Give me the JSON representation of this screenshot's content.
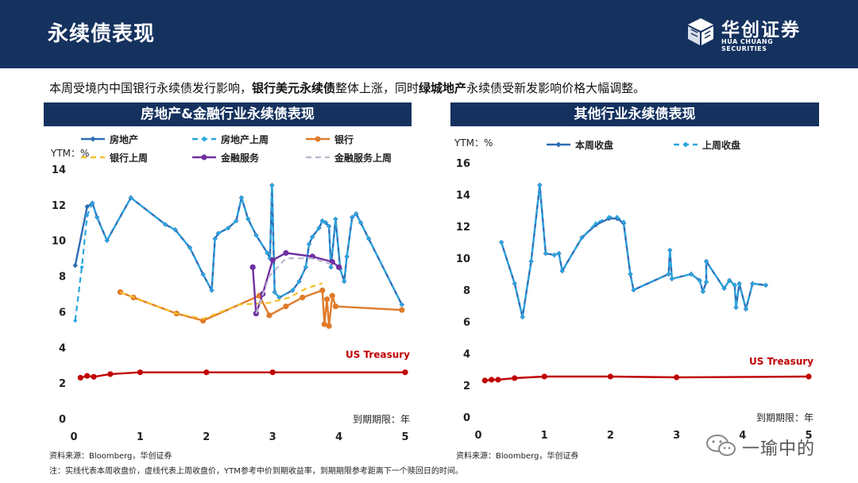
{
  "header": {
    "title": "永续债表现",
    "logo_cn": "华创证券",
    "logo_en": "HUA CHUANG SECURITIES"
  },
  "summary": {
    "part1": "本周受境内中国银行永续债发行影响，",
    "bold1": "银行美元永续债",
    "part2": "整体上涨，同时",
    "bold2": "绿城地产",
    "part3": "永续债受新发影响价格大幅调整。"
  },
  "colors": {
    "navy": "#15325f",
    "estate": "#2f6db5",
    "estate_prev": "#2aa6df",
    "bank": "#e07b2a",
    "bank_prev": "#f5c02a",
    "finance": "#7030a0",
    "finance_prev": "#b9b9d2",
    "treasury": "#c00000"
  },
  "left_panel": {
    "title": "房地产&金融行业永续债表现"
  },
  "right_panel": {
    "title": "其他行业永续债表现"
  },
  "chart_data": [
    {
      "type": "line",
      "title": "房地产&金融行业永续债表现",
      "ylabel": "YTM：%",
      "xlabel": "到期期限：年",
      "xlim": [
        0,
        5
      ],
      "ylim": [
        0,
        14
      ],
      "xticks": [
        "0",
        "1",
        "2",
        "3",
        "4",
        "5"
      ],
      "yticks": [
        "0",
        "2",
        "4",
        "6",
        "8",
        "10",
        "12",
        "14"
      ],
      "legend_position": "top",
      "annotation": "US Treasury",
      "series": [
        {
          "name": "房地产",
          "style": "solid-marker",
          "color": "#2f6db5",
          "points": [
            [
              0.02,
              8.6
            ],
            [
              0.2,
              11.9
            ],
            [
              0.28,
              12.1
            ],
            [
              0.35,
              11.3
            ],
            [
              0.5,
              10.0
            ],
            [
              0.86,
              12.4
            ],
            [
              1.38,
              10.9
            ],
            [
              1.53,
              10.6
            ],
            [
              1.75,
              9.6
            ],
            [
              1.95,
              8.1
            ],
            [
              2.08,
              7.2
            ],
            [
              2.13,
              10.1
            ],
            [
              2.18,
              10.4
            ],
            [
              2.33,
              10.7
            ],
            [
              2.45,
              11.1
            ],
            [
              2.53,
              12.4
            ],
            [
              2.63,
              11.2
            ],
            [
              2.75,
              10.3
            ],
            [
              2.92,
              9.3
            ],
            [
              2.96,
              9.0
            ],
            [
              2.99,
              13.1
            ],
            [
              3.03,
              7.1
            ],
            [
              3.1,
              6.8
            ],
            [
              3.3,
              7.2
            ],
            [
              3.4,
              7.7
            ],
            [
              3.5,
              8.5
            ],
            [
              3.55,
              9.8
            ],
            [
              3.6,
              10.2
            ],
            [
              3.7,
              10.7
            ],
            [
              3.75,
              11.1
            ],
            [
              3.8,
              11.0
            ],
            [
              3.85,
              10.8
            ],
            [
              3.88,
              8.5
            ],
            [
              3.95,
              11.2
            ],
            [
              4.02,
              8.4
            ],
            [
              4.08,
              7.7
            ],
            [
              4.12,
              9.1
            ],
            [
              4.2,
              11.3
            ],
            [
              4.26,
              11.5
            ],
            [
              4.33,
              11.0
            ],
            [
              4.45,
              10.1
            ],
            [
              4.95,
              6.4
            ]
          ]
        },
        {
          "name": "房地产上周",
          "style": "dashed-marker",
          "color": "#2aa6df",
          "points": [
            [
              0.02,
              5.5
            ],
            [
              0.12,
              8.5
            ],
            [
              0.2,
              11.4
            ],
            [
              0.28,
              12.1
            ],
            [
              0.35,
              11.3
            ],
            [
              0.5,
              10.0
            ],
            [
              0.86,
              12.4
            ],
            [
              1.38,
              10.9
            ],
            [
              1.53,
              10.6
            ],
            [
              1.75,
              9.6
            ],
            [
              1.95,
              8.1
            ],
            [
              2.08,
              7.2
            ],
            [
              2.13,
              10.1
            ],
            [
              2.18,
              10.4
            ],
            [
              2.33,
              10.7
            ],
            [
              2.45,
              11.1
            ],
            [
              2.53,
              12.4
            ],
            [
              2.63,
              11.2
            ],
            [
              2.75,
              10.3
            ],
            [
              2.92,
              9.3
            ],
            [
              2.96,
              9.0
            ],
            [
              2.99,
              13.1
            ],
            [
              3.03,
              7.1
            ],
            [
              3.1,
              6.8
            ],
            [
              3.3,
              7.2
            ],
            [
              3.4,
              7.7
            ],
            [
              3.5,
              8.5
            ],
            [
              3.55,
              9.8
            ],
            [
              3.6,
              10.2
            ],
            [
              3.7,
              10.7
            ],
            [
              3.75,
              11.1
            ],
            [
              3.8,
              11.0
            ],
            [
              3.85,
              10.8
            ],
            [
              3.88,
              8.5
            ],
            [
              3.95,
              11.2
            ],
            [
              4.02,
              8.4
            ],
            [
              4.08,
              7.7
            ],
            [
              4.12,
              9.1
            ],
            [
              4.2,
              11.3
            ],
            [
              4.26,
              11.5
            ],
            [
              4.33,
              11.0
            ],
            [
              4.45,
              10.1
            ],
            [
              4.95,
              6.4
            ]
          ]
        },
        {
          "name": "银行",
          "style": "solid-dot",
          "color": "#e07b2a",
          "points": [
            [
              0.7,
              7.1
            ],
            [
              0.9,
              6.8
            ],
            [
              1.55,
              5.9
            ],
            [
              1.95,
              5.5
            ],
            [
              2.8,
              6.9
            ],
            [
              2.95,
              5.8
            ],
            [
              3.2,
              6.3
            ],
            [
              3.45,
              6.8
            ],
            [
              3.75,
              7.2
            ],
            [
              3.78,
              5.3
            ],
            [
              3.82,
              6.7
            ],
            [
              3.85,
              5.2
            ],
            [
              3.9,
              6.9
            ],
            [
              3.95,
              6.3
            ],
            [
              4.95,
              6.1
            ]
          ]
        },
        {
          "name": "银行上周",
          "style": "dashed",
          "color": "#f5c02a",
          "points": [
            [
              0.7,
              7.1
            ],
            [
              1.55,
              5.9
            ],
            [
              1.95,
              5.6
            ],
            [
              2.5,
              6.4
            ],
            [
              2.95,
              6.5
            ],
            [
              3.25,
              6.8
            ],
            [
              3.5,
              7.3
            ],
            [
              3.75,
              7.6
            ]
          ]
        },
        {
          "name": "金融服务",
          "style": "solid-dot",
          "color": "#7030a0",
          "points": [
            [
              2.7,
              8.5
            ],
            [
              2.75,
              5.9
            ],
            [
              2.85,
              7.0
            ],
            [
              3.0,
              8.9
            ],
            [
              3.2,
              9.3
            ],
            [
              3.6,
              9.1
            ],
            [
              3.9,
              8.8
            ],
            [
              4.0,
              8.5
            ]
          ]
        },
        {
          "name": "金融服务上周",
          "style": "dashed",
          "color": "#b9b9d2",
          "points": [
            [
              2.75,
              5.9
            ],
            [
              2.95,
              8.0
            ],
            [
              3.2,
              9.0
            ],
            [
              3.6,
              9.0
            ],
            [
              3.95,
              8.6
            ]
          ]
        },
        {
          "name": "US Treasury",
          "style": "solid-dot",
          "color": "#c00000",
          "points": [
            [
              0.1,
              2.3
            ],
            [
              0.2,
              2.4
            ],
            [
              0.3,
              2.35
            ],
            [
              0.55,
              2.5
            ],
            [
              1.0,
              2.6
            ],
            [
              2.0,
              2.6
            ],
            [
              3.0,
              2.6
            ],
            [
              5.0,
              2.6
            ]
          ]
        }
      ]
    },
    {
      "type": "line",
      "title": "其他行业永续债表现",
      "ylabel": "YTM：%",
      "xlabel": "到期期限：年",
      "xlim": [
        0,
        5
      ],
      "ylim": [
        0,
        16
      ],
      "xticks": [
        "0",
        "1",
        "2",
        "3",
        "4",
        "5"
      ],
      "yticks": [
        "0",
        "2",
        "4",
        "6",
        "8",
        "10",
        "12",
        "14",
        "16"
      ],
      "legend_position": "top",
      "annotation": "US Treasury",
      "series": [
        {
          "name": "本周收盘",
          "style": "solid-marker",
          "color": "#2f6db5",
          "points": [
            [
              0.35,
              11.0
            ],
            [
              0.55,
              8.4
            ],
            [
              0.67,
              6.3
            ],
            [
              0.8,
              9.8
            ],
            [
              0.93,
              14.6
            ],
            [
              1.02,
              10.3
            ],
            [
              1.15,
              10.2
            ],
            [
              1.22,
              10.3
            ],
            [
              1.27,
              9.2
            ],
            [
              1.57,
              11.3
            ],
            [
              1.78,
              12.1
            ],
            [
              1.98,
              12.5
            ],
            [
              2.1,
              12.5
            ],
            [
              2.2,
              12.2
            ],
            [
              2.3,
              9.0
            ],
            [
              2.35,
              8.0
            ],
            [
              2.88,
              9.0
            ],
            [
              2.9,
              10.5
            ],
            [
              2.93,
              8.7
            ],
            [
              3.22,
              9.0
            ],
            [
              3.35,
              8.6
            ],
            [
              3.4,
              7.9
            ],
            [
              3.45,
              8.5
            ],
            [
              3.45,
              9.8
            ],
            [
              3.72,
              8.1
            ],
            [
              3.8,
              8.6
            ],
            [
              3.88,
              8.3
            ],
            [
              3.9,
              6.9
            ],
            [
              3.95,
              8.4
            ],
            [
              4.05,
              6.8
            ],
            [
              4.15,
              8.4
            ],
            [
              4.35,
              8.3
            ]
          ]
        },
        {
          "name": "上周收盘",
          "style": "dashed-marker",
          "color": "#2aa6df",
          "points": [
            [
              0.35,
              11.0
            ],
            [
              0.55,
              8.4
            ],
            [
              0.67,
              6.3
            ],
            [
              0.8,
              9.8
            ],
            [
              0.93,
              14.6
            ],
            [
              1.02,
              10.3
            ],
            [
              1.15,
              10.2
            ],
            [
              1.22,
              10.3
            ],
            [
              1.27,
              9.2
            ],
            [
              1.57,
              11.3
            ],
            [
              1.78,
              12.2
            ],
            [
              1.98,
              12.6
            ],
            [
              2.1,
              12.6
            ],
            [
              2.2,
              12.3
            ],
            [
              2.3,
              9.0
            ],
            [
              2.35,
              8.0
            ],
            [
              2.88,
              9.0
            ],
            [
              2.9,
              10.5
            ],
            [
              2.93,
              8.7
            ],
            [
              3.22,
              9.0
            ],
            [
              3.35,
              8.6
            ],
            [
              3.4,
              7.9
            ],
            [
              3.45,
              8.5
            ],
            [
              3.45,
              9.8
            ],
            [
              3.72,
              8.1
            ],
            [
              3.8,
              8.6
            ],
            [
              3.88,
              8.3
            ],
            [
              3.9,
              6.9
            ],
            [
              3.95,
              8.4
            ],
            [
              4.05,
              6.8
            ],
            [
              4.15,
              8.4
            ],
            [
              4.35,
              8.3
            ]
          ]
        },
        {
          "name": "US Treasury",
          "style": "solid-dot",
          "color": "#c00000",
          "points": [
            [
              0.1,
              2.3
            ],
            [
              0.2,
              2.35
            ],
            [
              0.3,
              2.35
            ],
            [
              0.55,
              2.45
            ],
            [
              1.0,
              2.55
            ],
            [
              2.0,
              2.55
            ],
            [
              3.0,
              2.5
            ],
            [
              5.0,
              2.55
            ]
          ]
        }
      ]
    }
  ],
  "footer": {
    "source_left": "资料来源：Bloomberg，华创证券",
    "source_right": "资料来源：Bloomberg，华创证券",
    "note": "注：实线代表本周收盘价，虚线代表上周收盘价，YTM参考中价到期收益率，到期期限参考距离下一个赎回日的时间。",
    "watermark": "一瑜中的"
  }
}
